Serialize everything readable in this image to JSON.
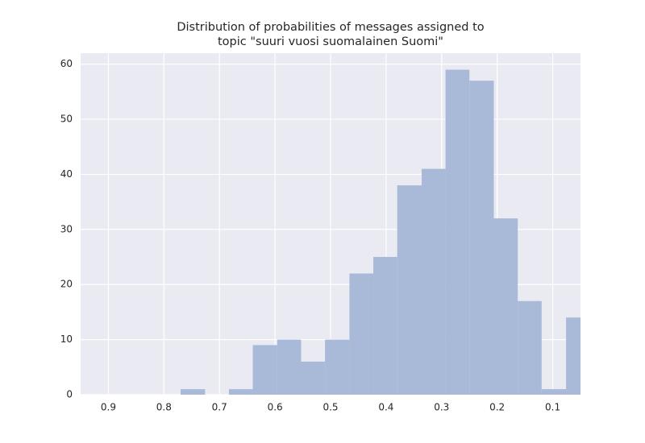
{
  "chart_data": {
    "type": "histogram",
    "title": [
      "Distribution of probabilities of messages assigned to",
      "topic \"suuri vuosi suomalainen Suomi\""
    ],
    "bins": [
      0.033,
      0.076,
      0.12,
      0.163,
      0.206,
      0.25,
      0.293,
      0.336,
      0.38,
      0.423,
      0.466,
      0.51,
      0.553,
      0.596,
      0.64,
      0.683,
      0.726,
      0.77
    ],
    "values": [
      14,
      1,
      17,
      32,
      57,
      59,
      41,
      38,
      25,
      22,
      10,
      6,
      10,
      9,
      1,
      0,
      1
    ],
    "color": "#a9b9d8",
    "xlim": [
      0.95,
      0.05
    ],
    "xticks": [
      0.9,
      0.8,
      0.7,
      0.6,
      0.5,
      0.4,
      0.3,
      0.2,
      0.1
    ],
    "ylim": [
      0,
      62
    ],
    "yticks": [
      0,
      10,
      20,
      30,
      40,
      50,
      60
    ],
    "grid": true
  }
}
